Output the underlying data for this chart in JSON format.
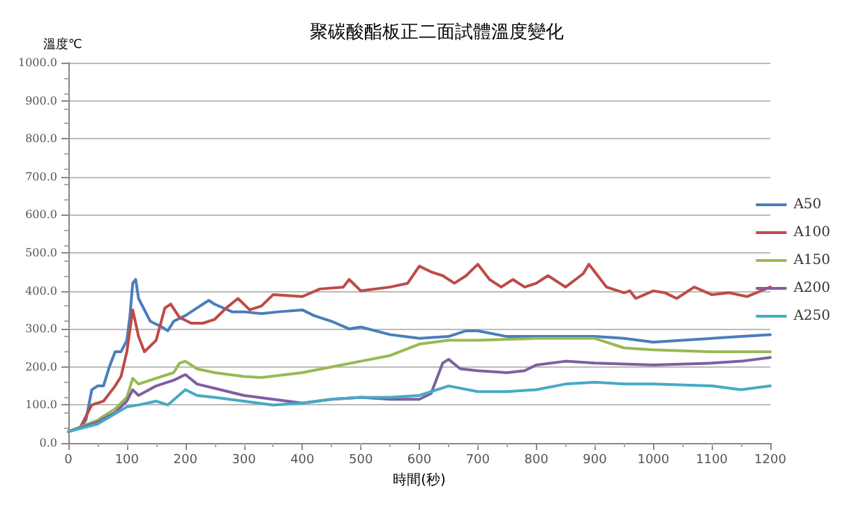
{
  "chart_data": {
    "type": "line",
    "title": "聚碳酸酯板正二面試體溫度變化",
    "ylabel": "溫度℃",
    "xlabel": "時間(秒)",
    "xlim": [
      0,
      1200
    ],
    "xticks": [
      0,
      100,
      200,
      300,
      400,
      500,
      600,
      700,
      800,
      900,
      1000,
      1100,
      1200
    ],
    "ylim": [
      0,
      1000
    ],
    "yticks": [
      {
        "value": 0,
        "label": "0.0"
      },
      {
        "value": 100,
        "label": "100.0"
      },
      {
        "value": 200,
        "label": "200.0"
      },
      {
        "value": 300,
        "label": "300.0"
      },
      {
        "value": 400,
        "label": "400.0"
      },
      {
        "value": 500,
        "label": "500.0"
      },
      {
        "value": 600,
        "label": "600.0"
      },
      {
        "value": 700,
        "label": "700.0"
      },
      {
        "value": 800,
        "label": "800.0"
      },
      {
        "value": 900,
        "label": "900.0"
      },
      {
        "value": 1000,
        "label": "1000.0"
      }
    ],
    "grid": "y",
    "legend": "right",
    "marker": "none",
    "line_style": "solid",
    "series": [
      {
        "name": "A50",
        "color": "#4a7ebb",
        "x": [
          0,
          20,
          30,
          40,
          50,
          60,
          70,
          80,
          90,
          100,
          105,
          110,
          115,
          120,
          140,
          160,
          170,
          180,
          200,
          220,
          240,
          250,
          280,
          300,
          330,
          360,
          400,
          420,
          450,
          480,
          500,
          550,
          600,
          650,
          680,
          700,
          750,
          800,
          900,
          950,
          1000,
          1050,
          1100,
          1150,
          1200
        ],
        "values": [
          30,
          40,
          60,
          140,
          150,
          150,
          200,
          240,
          240,
          270,
          330,
          420,
          430,
          380,
          320,
          305,
          295,
          320,
          335,
          355,
          375,
          365,
          345,
          345,
          340,
          345,
          350,
          335,
          320,
          300,
          305,
          285,
          275,
          280,
          295,
          295,
          280,
          280,
          280,
          275,
          265,
          270,
          275,
          280,
          285
        ]
      },
      {
        "name": "A100",
        "color": "#be4b48",
        "x": [
          0,
          20,
          40,
          60,
          80,
          90,
          100,
          110,
          120,
          130,
          150,
          165,
          175,
          190,
          210,
          230,
          250,
          270,
          290,
          310,
          330,
          350,
          400,
          430,
          470,
          480,
          500,
          550,
          580,
          600,
          620,
          640,
          660,
          680,
          700,
          720,
          740,
          760,
          780,
          800,
          820,
          850,
          880,
          890,
          900,
          920,
          950,
          960,
          970,
          1000,
          1020,
          1040,
          1070,
          1100,
          1130,
          1160,
          1200
        ],
        "values": [
          30,
          40,
          100,
          110,
          150,
          175,
          240,
          350,
          280,
          240,
          270,
          355,
          365,
          330,
          315,
          315,
          325,
          355,
          380,
          350,
          360,
          390,
          385,
          405,
          410,
          430,
          400,
          410,
          420,
          465,
          450,
          440,
          420,
          440,
          470,
          430,
          410,
          430,
          410,
          420,
          440,
          410,
          445,
          470,
          450,
          410,
          395,
          400,
          380,
          400,
          395,
          380,
          410,
          390,
          395,
          385,
          410
        ]
      },
      {
        "name": "A150",
        "color": "#98b954",
        "x": [
          0,
          50,
          80,
          100,
          110,
          120,
          140,
          160,
          180,
          190,
          200,
          220,
          250,
          300,
          330,
          400,
          450,
          500,
          550,
          600,
          650,
          700,
          800,
          900,
          950,
          1000,
          1100,
          1200
        ],
        "values": [
          30,
          60,
          90,
          120,
          170,
          155,
          165,
          175,
          185,
          210,
          215,
          195,
          185,
          175,
          172,
          185,
          200,
          215,
          230,
          260,
          270,
          270,
          275,
          275,
          250,
          245,
          240,
          240
        ]
      },
      {
        "name": "A200",
        "color": "#7d60a0",
        "x": [
          0,
          50,
          80,
          100,
          110,
          120,
          150,
          180,
          200,
          220,
          260,
          300,
          350,
          400,
          450,
          500,
          550,
          600,
          620,
          640,
          650,
          670,
          700,
          750,
          780,
          800,
          850,
          900,
          1000,
          1100,
          1150,
          1200
        ],
        "values": [
          30,
          55,
          80,
          110,
          140,
          125,
          150,
          165,
          180,
          155,
          140,
          125,
          115,
          105,
          115,
          120,
          115,
          115,
          130,
          210,
          220,
          195,
          190,
          185,
          190,
          205,
          215,
          210,
          205,
          210,
          215,
          225
        ]
      },
      {
        "name": "A250",
        "color": "#46aac5",
        "x": [
          0,
          50,
          100,
          120,
          150,
          170,
          200,
          220,
          250,
          300,
          350,
          400,
          450,
          500,
          550,
          600,
          640,
          650,
          700,
          750,
          800,
          850,
          900,
          950,
          1000,
          1100,
          1150,
          1200
        ],
        "values": [
          30,
          50,
          95,
          100,
          110,
          100,
          140,
          125,
          120,
          110,
          100,
          105,
          115,
          120,
          120,
          125,
          145,
          150,
          135,
          135,
          140,
          155,
          160,
          155,
          155,
          150,
          140,
          150
        ]
      }
    ]
  }
}
